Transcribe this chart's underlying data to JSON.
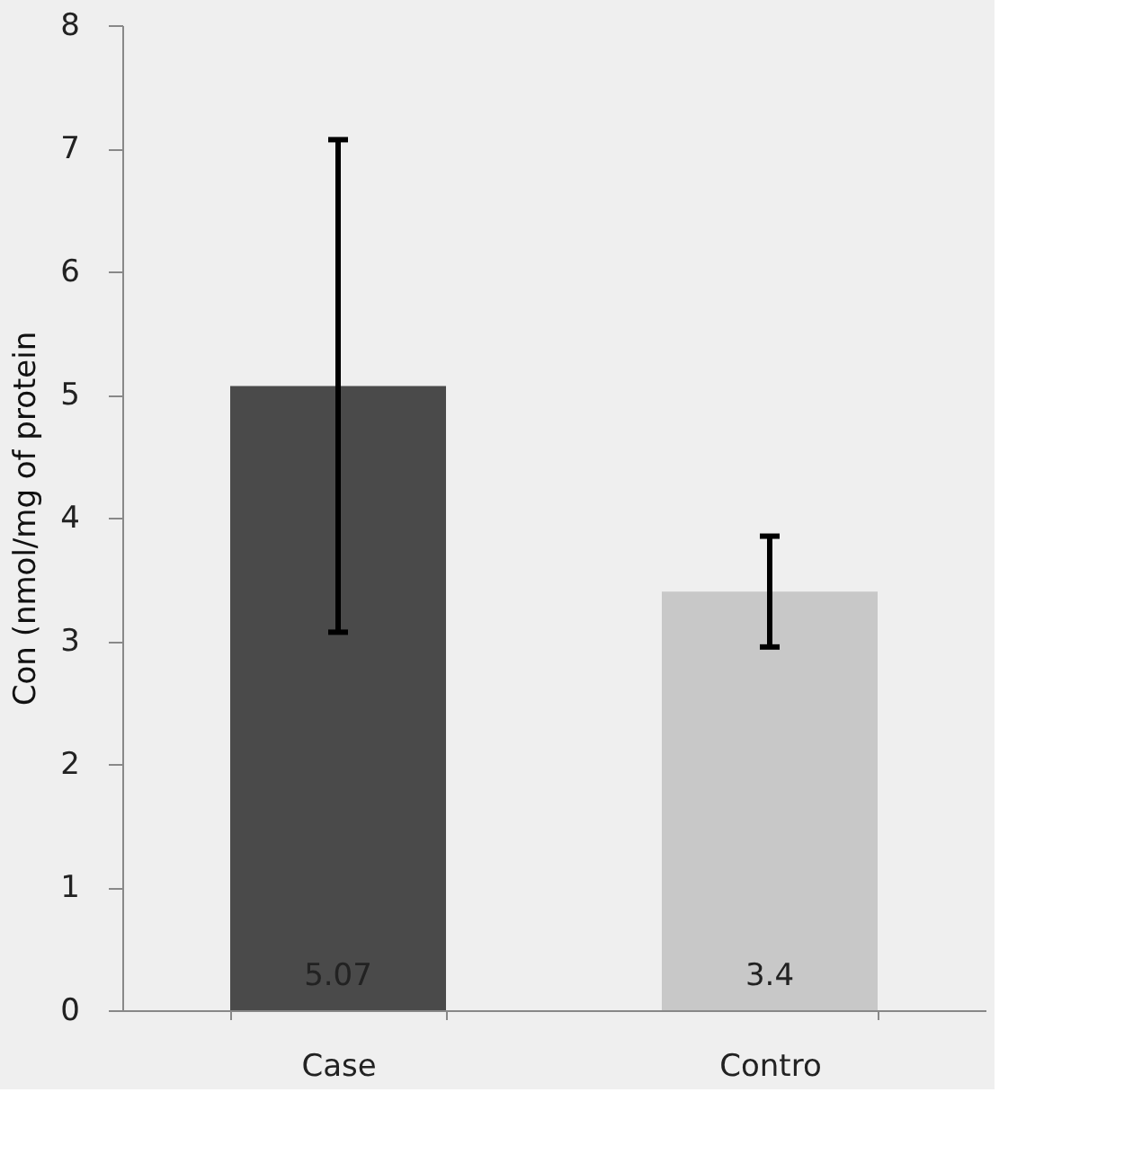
{
  "chart_data": {
    "type": "bar",
    "ylabel": "Con (nmol/mg of protein",
    "categories": [
      "Case",
      "Contro"
    ],
    "values": [
      5.07,
      3.4
    ],
    "colors": [
      "#4a4a4a",
      "#c8c8c8"
    ],
    "errors": [
      2.0,
      0.45
    ],
    "data_labels": true,
    "ylim": [
      0,
      8
    ],
    "yticks": [
      0,
      1,
      2,
      3,
      4,
      5,
      6,
      7,
      8
    ],
    "grid": false
  }
}
